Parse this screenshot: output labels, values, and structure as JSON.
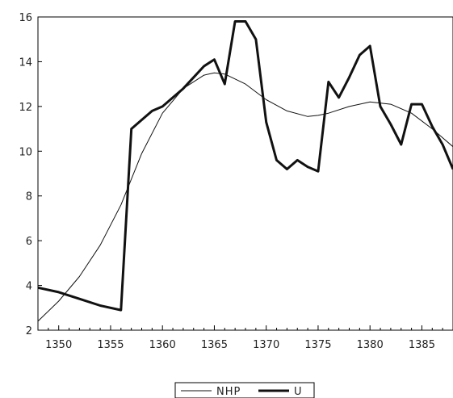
{
  "chart_data": {
    "type": "line",
    "title": "",
    "xlabel": "",
    "ylabel": "",
    "xlim": [
      1348,
      1388
    ],
    "ylim": [
      2,
      16
    ],
    "x_ticks": [
      1350,
      1355,
      1360,
      1365,
      1370,
      1375,
      1380,
      1385
    ],
    "y_ticks": [
      2,
      4,
      6,
      8,
      10,
      12,
      14,
      16
    ],
    "grid": false,
    "legend_position": "bottom-center",
    "series": [
      {
        "name": "NHP",
        "style": "thin",
        "color": "#111111",
        "x": [
          1348,
          1350,
          1352,
          1354,
          1356,
          1358,
          1360,
          1362,
          1364,
          1365,
          1366,
          1368,
          1370,
          1372,
          1374,
          1375,
          1376,
          1378,
          1380,
          1382,
          1384,
          1386,
          1388
        ],
        "y": [
          2.4,
          3.3,
          4.4,
          5.8,
          7.6,
          9.9,
          11.7,
          12.8,
          13.4,
          13.5,
          13.45,
          13.0,
          12.3,
          11.8,
          11.55,
          11.6,
          11.7,
          12.0,
          12.2,
          12.1,
          11.7,
          11.0,
          10.2
        ]
      },
      {
        "name": "U",
        "style": "thick",
        "color": "#111111",
        "x": [
          1348,
          1350,
          1352,
          1354,
          1356,
          1357,
          1358,
          1359,
          1360,
          1361,
          1362,
          1363,
          1364,
          1365,
          1366,
          1367,
          1368,
          1369,
          1370,
          1371,
          1372,
          1373,
          1374,
          1375,
          1376,
          1377,
          1378,
          1379,
          1380,
          1381,
          1382,
          1383,
          1384,
          1385,
          1386,
          1387,
          1388
        ],
        "y": [
          3.9,
          3.7,
          3.4,
          3.1,
          2.9,
          11.0,
          11.4,
          11.8,
          12.0,
          12.4,
          12.8,
          13.3,
          13.8,
          14.1,
          13.0,
          15.8,
          15.8,
          15.0,
          11.3,
          9.6,
          9.2,
          9.6,
          9.3,
          9.1,
          13.1,
          12.4,
          13.3,
          14.3,
          14.7,
          12.0,
          11.2,
          10.3,
          12.1,
          12.1,
          11.1,
          10.3,
          9.2
        ]
      }
    ]
  }
}
